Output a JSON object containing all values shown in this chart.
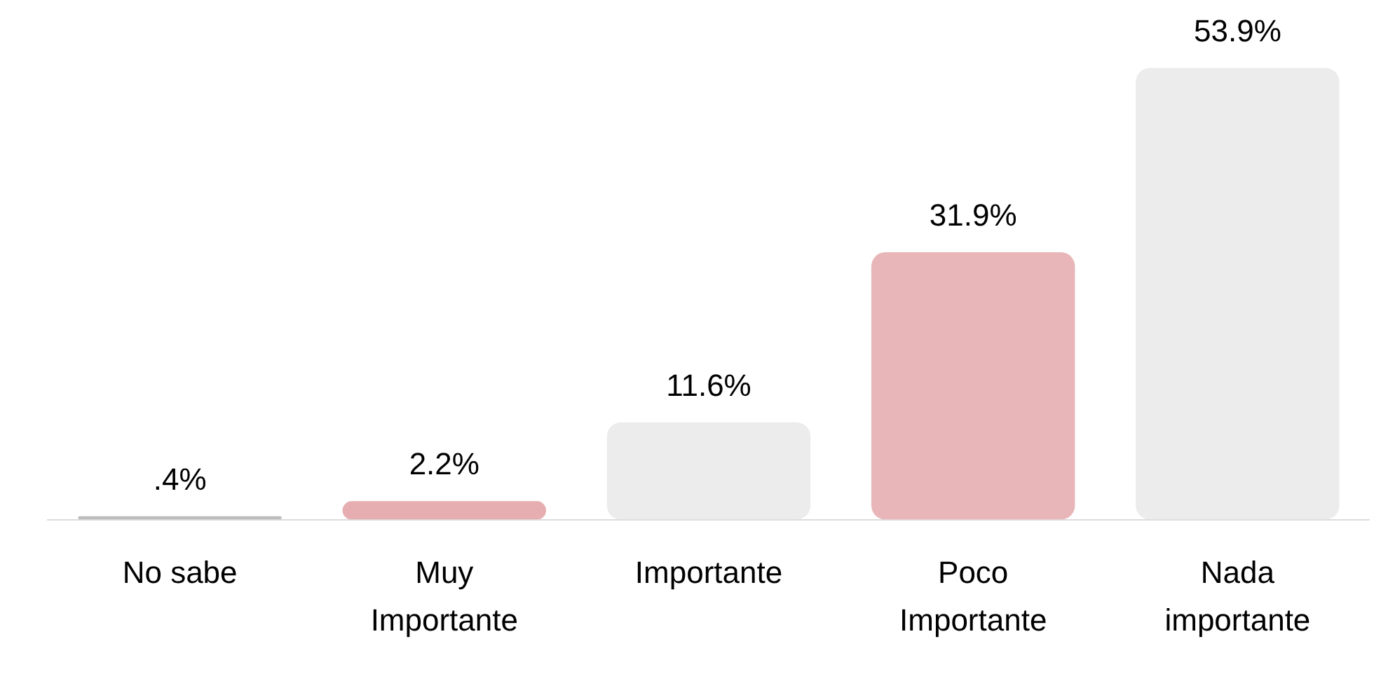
{
  "chart_data": {
    "type": "bar",
    "categories": [
      "No sabe",
      "Muy Importante",
      "Importante",
      "Poco Importante",
      "Nada importante"
    ],
    "values": [
      0.4,
      2.2,
      11.6,
      31.9,
      53.9
    ],
    "colors": [
      "#bdbdbd",
      "#e6aeb1",
      "#ececec",
      "#e8b6b8",
      "#ececec"
    ],
    "value_labels": [
      ".4%",
      "2.2%",
      "11.6%",
      "31.9%",
      "53.9%"
    ],
    "grid": false,
    "legend": false
  }
}
